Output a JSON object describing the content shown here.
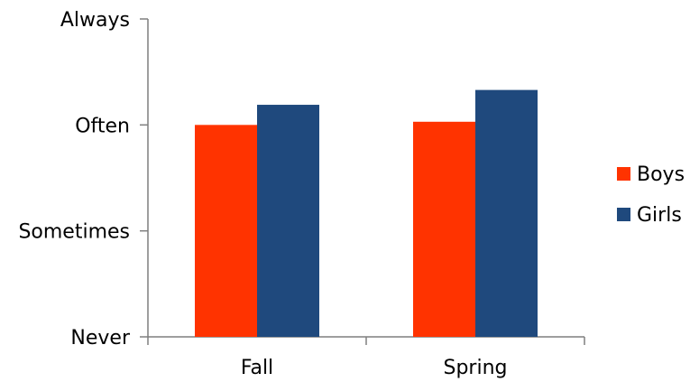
{
  "chart_data": {
    "type": "bar",
    "categories": [
      "Fall",
      "Spring"
    ],
    "series": [
      {
        "name": "Boys",
        "values": [
          2.0,
          2.03
        ],
        "color": "#ff3300"
      },
      {
        "name": "Girls",
        "values": [
          2.19,
          2.33
        ],
        "color": "#1f497d"
      }
    ],
    "y_tick_labels": [
      "Never",
      "Sometimes",
      "Often",
      "Always"
    ],
    "y_tick_values": [
      0,
      1,
      2,
      3
    ],
    "ylim": [
      0,
      3
    ],
    "grid": false,
    "legend_position": "right",
    "title": "",
    "xlabel": "",
    "ylabel": ""
  }
}
